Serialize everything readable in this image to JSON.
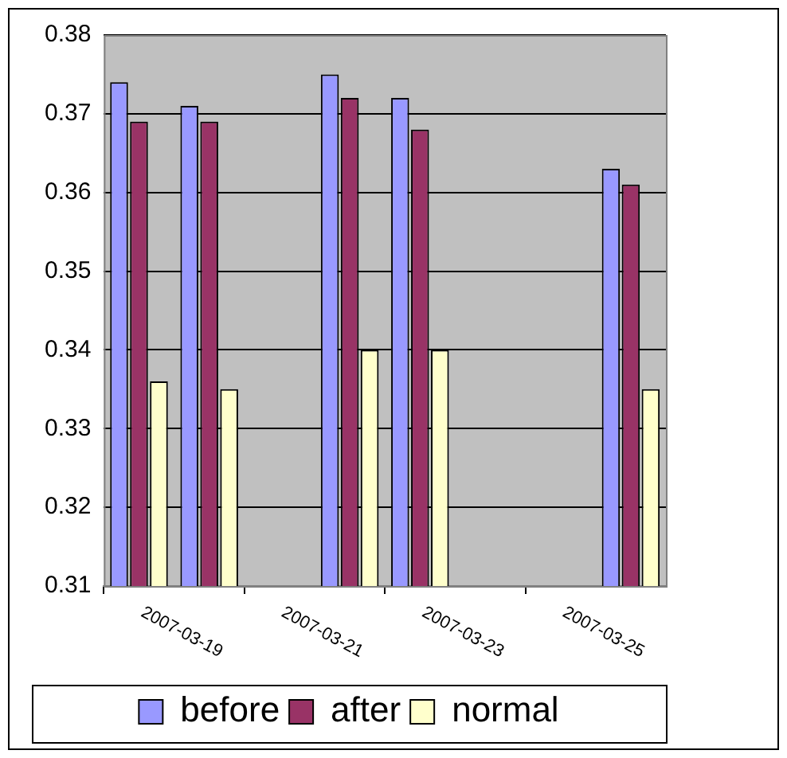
{
  "chart_data": {
    "type": "bar",
    "categories": [
      "2007-03-19",
      null,
      "2007-03-21",
      null,
      "2007-03-23",
      null,
      "2007-03-25",
      null
    ],
    "series": [
      {
        "name": "before",
        "color": "#9999ff",
        "values": [
          0.374,
          0.371,
          null,
          0.375,
          0.372,
          null,
          null,
          0.363
        ]
      },
      {
        "name": "after",
        "color": "#993366",
        "values": [
          0.369,
          0.369,
          null,
          0.372,
          0.368,
          null,
          null,
          0.361
        ]
      },
      {
        "name": "normal",
        "color": "#ffffcc",
        "values": [
          0.336,
          0.335,
          null,
          0.34,
          0.34,
          null,
          null,
          0.335
        ]
      }
    ],
    "ylim": [
      0.31,
      0.38
    ],
    "yticks": [
      0.31,
      0.32,
      0.33,
      0.34,
      0.35,
      0.36,
      0.37,
      0.38
    ],
    "grid": "y",
    "legend": "bottom"
  }
}
